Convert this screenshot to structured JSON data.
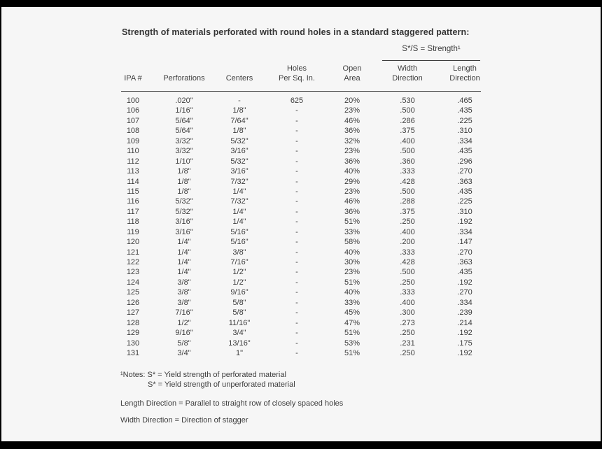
{
  "page": {
    "title": "Strength of materials perforated with round holes in a standard staggered pattern:",
    "background_color": "#f6f6f6",
    "frame_color": "#000000",
    "text_color": "#3d3d3d"
  },
  "table": {
    "group_header": "S*/S = Strength¹",
    "columns": [
      {
        "lines": [
          "IPA #"
        ]
      },
      {
        "lines": [
          "Perforations"
        ]
      },
      {
        "lines": [
          "Centers"
        ]
      },
      {
        "lines": [
          "Holes",
          "Per Sq. In."
        ]
      },
      {
        "lines": [
          "Open",
          "Area"
        ]
      },
      {
        "lines": [
          "Width",
          "Direction"
        ]
      },
      {
        "lines": [
          "Length",
          "Direction"
        ]
      }
    ],
    "rows": [
      [
        "100",
        ".020\"",
        "-",
        "625",
        "20%",
        ".530",
        ".465"
      ],
      [
        "106",
        "1/16\"",
        "1/8\"",
        "-",
        "23%",
        ".500",
        ".435"
      ],
      [
        "107",
        "5/64\"",
        "7/64\"",
        "-",
        "46%",
        ".286",
        ".225"
      ],
      [
        "108",
        "5/64\"",
        "1/8\"",
        "-",
        "36%",
        ".375",
        ".310"
      ],
      [
        "109",
        "3/32\"",
        "5/32\"",
        "-",
        "32%",
        ".400",
        ".334"
      ],
      [
        "110",
        "3/32\"",
        "3/16\"",
        "-",
        "23%",
        ".500",
        ".435"
      ],
      [
        "112",
        "1/10\"",
        "5/32\"",
        "-",
        "36%",
        ".360",
        ".296"
      ],
      [
        "113",
        "1/8\"",
        "3/16\"",
        "-",
        "40%",
        ".333",
        ".270"
      ],
      [
        "114",
        "1/8\"",
        "7/32\"",
        "-",
        "29%",
        ".428",
        ".363"
      ],
      [
        "115",
        "1/8\"",
        "1/4\"",
        "-",
        "23%",
        ".500",
        ".435"
      ],
      [
        "116",
        "5/32\"",
        "7/32\"",
        "-",
        "46%",
        ".288",
        ".225"
      ],
      [
        "117",
        "5/32\"",
        "1/4\"",
        "-",
        "36%",
        ".375",
        ".310"
      ],
      [
        "118",
        "3/16\"",
        "1/4\"",
        "-",
        "51%",
        ".250",
        ".192"
      ],
      [
        "119",
        "3/16\"",
        "5/16\"",
        "-",
        "33%",
        ".400",
        ".334"
      ],
      [
        "120",
        "1/4\"",
        "5/16\"",
        "-",
        "58%",
        ".200",
        ".147"
      ],
      [
        "121",
        "1/4\"",
        "3/8\"",
        "-",
        "40%",
        ".333",
        ".270"
      ],
      [
        "122",
        "1/4\"",
        "7/16\"",
        "-",
        "30%",
        ".428",
        ".363"
      ],
      [
        "123",
        "1/4\"",
        "1/2\"",
        "-",
        "23%",
        ".500",
        ".435"
      ],
      [
        "124",
        "3/8\"",
        "1/2\"",
        "-",
        "51%",
        ".250",
        ".192"
      ],
      [
        "125",
        "3/8\"",
        "9/16\"",
        "-",
        "40%",
        ".333",
        ".270"
      ],
      [
        "126",
        "3/8\"",
        "5/8\"",
        "-",
        "33%",
        ".400",
        ".334"
      ],
      [
        "127",
        "7/16\"",
        "5/8\"",
        "-",
        "45%",
        ".300",
        ".239"
      ],
      [
        "128",
        "1/2\"",
        "11/16\"",
        "-",
        "47%",
        ".273",
        ".214"
      ],
      [
        "129",
        "9/16\"",
        "3/4\"",
        "-",
        "51%",
        ".250",
        ".192"
      ],
      [
        "130",
        "5/8\"",
        "13/16\"",
        "-",
        "53%",
        ".231",
        ".175"
      ],
      [
        "131",
        "3/4\"",
        "1\"",
        "-",
        "51%",
        ".250",
        ".192"
      ]
    ]
  },
  "notes": {
    "line1": "¹Notes: S* = Yield strength of perforated material",
    "line2": "S* = Yield strength of unperforated material",
    "length_note": "Length Direction = Parallel to straight row of closely spaced holes",
    "width_note": "Width Direction = Direction of stagger"
  }
}
